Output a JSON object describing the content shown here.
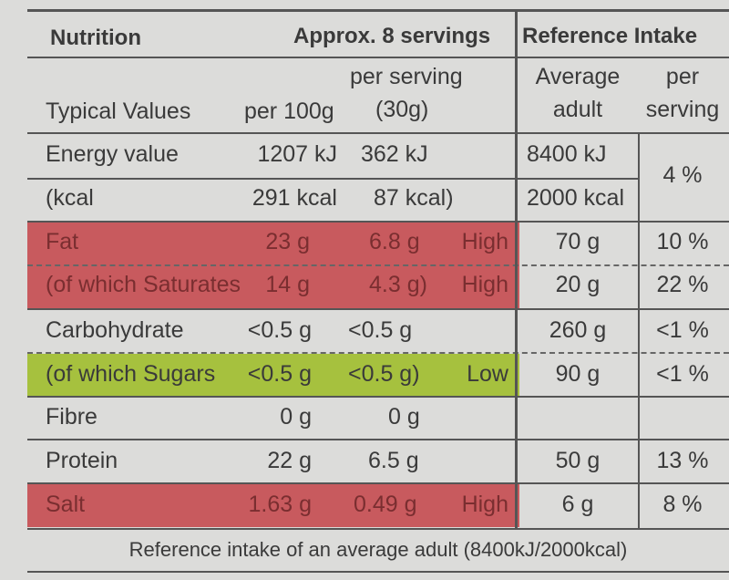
{
  "header": {
    "nutrition": "Nutrition",
    "servings": "Approx. 8 servings",
    "reference_intake": "Reference Intake"
  },
  "subheader": {
    "typical_values": "Typical Values",
    "per_100g": "per 100g",
    "per_serving_line1": "per serving",
    "per_serving_line2": "(30g)",
    "average_line1": "Average",
    "average_line2": "adult",
    "ri_per_line1": "per",
    "ri_per_line2": "serving"
  },
  "rows": [
    {
      "name": "Energy value",
      "per100": "1207 kJ",
      "serving": "362 kJ",
      "level": "",
      "ri": "8400 kJ",
      "pct": "4 %"
    },
    {
      "name": "(kcal",
      "per100": "291 kcal",
      "serving": "87 kcal)",
      "level": "",
      "ri": "2000 kcal",
      "pct": ""
    },
    {
      "name": "Fat",
      "per100": "23 g",
      "serving": "6.8 g",
      "level": "High",
      "ri": "70 g",
      "pct": "10 %"
    },
    {
      "name": "(of which Saturates",
      "per100": "14 g",
      "serving": "4.3 g)",
      "level": "High",
      "ri": "20 g",
      "pct": "22 %"
    },
    {
      "name": "Carbohydrate",
      "per100": "<0.5 g",
      "serving": "<0.5 g",
      "level": "",
      "ri": "260 g",
      "pct": "<1 %"
    },
    {
      "name": "(of which Sugars",
      "per100": "<0.5 g",
      "serving": "<0.5 g)",
      "level": "Low",
      "ri": "90 g",
      "pct": "<1 %"
    },
    {
      "name": "Fibre",
      "per100": "0 g",
      "serving": "0 g",
      "level": "",
      "ri": "",
      "pct": ""
    },
    {
      "name": "Protein",
      "per100": "22 g",
      "serving": "6.5 g",
      "level": "",
      "ri": "50 g",
      "pct": "13 %"
    },
    {
      "name": "Salt",
      "per100": "1.63 g",
      "serving": "0.49 g",
      "level": "High",
      "ri": "6 g",
      "pct": "8 %"
    }
  ],
  "footer": "Reference intake of an average adult (8400kJ/2000kcal)",
  "colors": {
    "high": "#c85a5e",
    "low": "#a6c13e",
    "background": "#dcdcda"
  }
}
